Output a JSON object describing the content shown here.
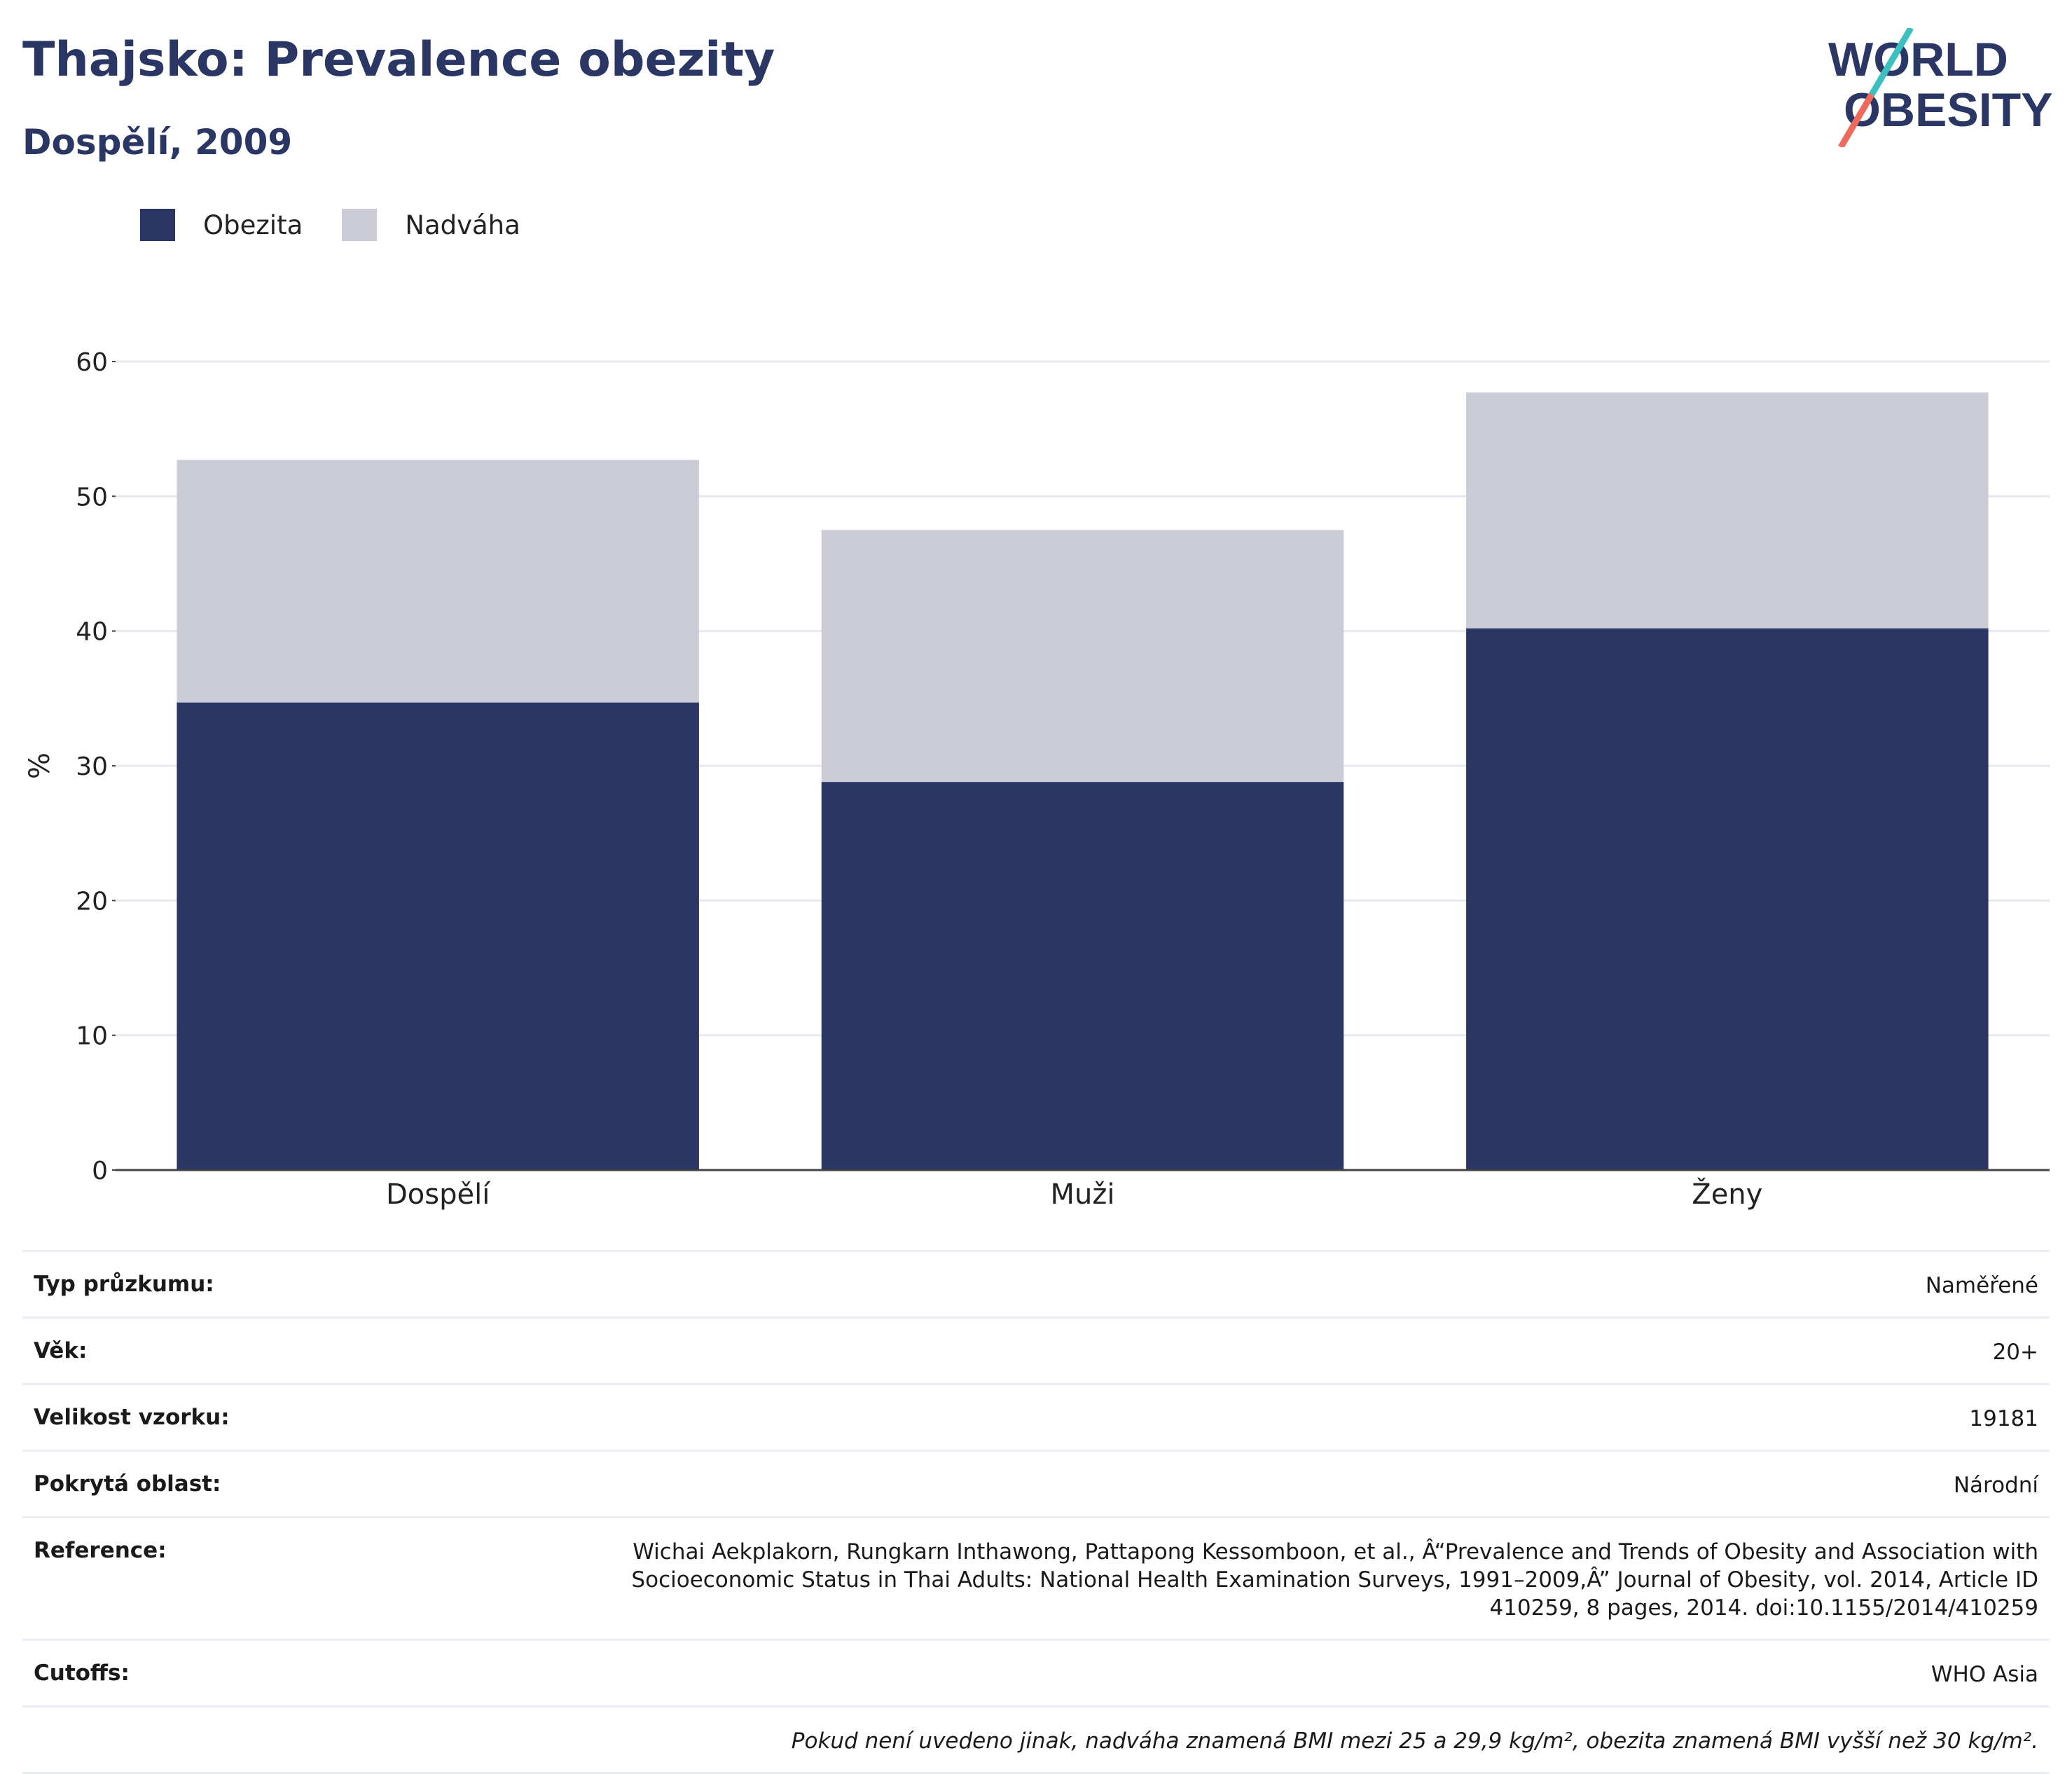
{
  "header": {
    "title": "Thajsko: Prevalence obezity",
    "subtitle": "Dospělí, 2009"
  },
  "logo": {
    "line1": "WORLD",
    "line2": "OBESITY"
  },
  "legend": [
    {
      "label": "Obezita",
      "color": "#2a3663"
    },
    {
      "label": "Nadváha",
      "color": "#cbccd8"
    }
  ],
  "chart_data": {
    "type": "bar",
    "stacked": true,
    "categories": [
      "Dospělí",
      "Muži",
      "Ženy"
    ],
    "series": [
      {
        "name": "Obezita",
        "color": "#2a3663",
        "values": [
          34.7,
          28.8,
          40.2
        ]
      },
      {
        "name": "Nadváha",
        "color": "#cbccd8",
        "values": [
          18.0,
          18.7,
          17.5
        ]
      }
    ],
    "ylabel": "%",
    "ylim": [
      0,
      60
    ],
    "yticks": [
      0,
      10,
      20,
      30,
      40,
      50,
      60
    ],
    "grid": true,
    "legend_position": "top-left"
  },
  "meta": {
    "rows": [
      {
        "key": "Typ průzkumu:",
        "value": "Naměřené"
      },
      {
        "key": "Věk:",
        "value": "20+"
      },
      {
        "key": "Velikost vzorku:",
        "value": "19181"
      },
      {
        "key": "Pokrytá oblast:",
        "value": "Národní"
      },
      {
        "key": "Reference:",
        "value": "Wichai Aekplakorn, Rungkarn Inthawong, Pattapong Kessomboon, et al., Â“Prevalence and Trends of Obesity and Association with Socioeconomic Status in Thai Adults: National Health Examination Surveys, 1991–2009,Â” Journal of Obesity, vol. 2014, Article ID 410259, 8 pages, 2014. doi:10.1155/2014/410259"
      },
      {
        "key": "Cutoffs:",
        "value": "WHO Asia"
      }
    ],
    "note": "Pokud není uvedeno jinak, nadváha znamená BMI mezi 25 a 29,9 kg/m², obezita znamená BMI vyšší než 30 kg/m²."
  }
}
